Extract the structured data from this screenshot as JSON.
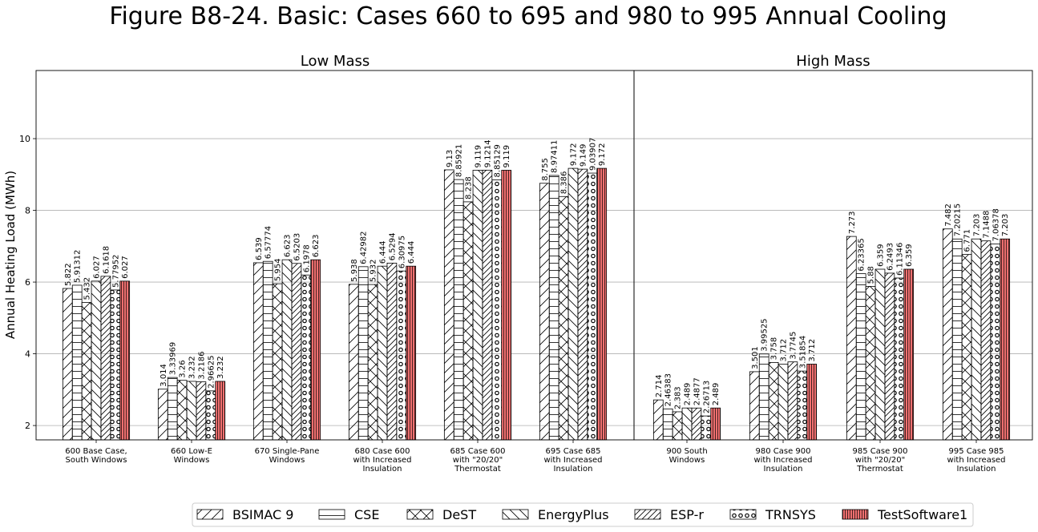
{
  "chart_data": {
    "type": "bar",
    "title": "Figure B8-24. Basic: Cases 660 to 695 and 980 to 995 Annual Cooling",
    "ylabel": "Annual Heating Load (MWh)",
    "ylim": [
      1.6,
      11.9
    ],
    "yticks": [
      2,
      4,
      6,
      8,
      10
    ],
    "grid": true,
    "legend_position": "bottom",
    "series": [
      {
        "name": "BSIMAC 9",
        "pattern": "diag-up"
      },
      {
        "name": "CSE",
        "pattern": "horizontal"
      },
      {
        "name": "DeST",
        "pattern": "cross"
      },
      {
        "name": "EnergyPlus",
        "pattern": "diag-down"
      },
      {
        "name": "ESP-r",
        "pattern": "diag-up-dense"
      },
      {
        "name": "TRNSYS",
        "pattern": "circles"
      },
      {
        "name": "TestSoftware1",
        "pattern": "vertical",
        "color": "#f07070"
      }
    ],
    "panels": [
      {
        "title": "Low Mass",
        "categories": [
          {
            "label": [
              "600 Base Case,",
              "South Windows"
            ],
            "values": [
              5.822,
              5.91312,
              5.432,
              6.027,
              6.1618,
              5.77952,
              6.027
            ],
            "labels": [
              "5.822",
              "5.91312",
              "5.432",
              "6.027",
              "6.1618",
              "5.77952",
              "6.027"
            ]
          },
          {
            "label": [
              "660 Low-E",
              "Windows"
            ],
            "values": [
              3.014,
              3.33969,
              3.26,
              3.232,
              3.2186,
              2.96625,
              3.232
            ],
            "labels": [
              "3.014",
              "3.33969",
              "3.26",
              "3.232",
              "3.2186",
              "2.96625",
              "3.232"
            ]
          },
          {
            "label": [
              "670 Single-Pane",
              "Windows"
            ],
            "values": [
              6.539,
              6.57774,
              5.954,
              6.623,
              6.5203,
              6.1978,
              6.623
            ],
            "labels": [
              "6.539",
              "6.57774",
              "5.954",
              "6.623",
              "6.5203",
              "6.1978",
              "6.623"
            ]
          },
          {
            "label": [
              "680 Case 600",
              "with Increased",
              "Insulation"
            ],
            "values": [
              5.938,
              6.42982,
              5.932,
              6.444,
              6.5294,
              6.30975,
              6.444
            ],
            "labels": [
              "5.938",
              "6.42982",
              "5.932",
              "6.444",
              "6.5294",
              "6.30975",
              "6.444"
            ]
          },
          {
            "label": [
              "685 Case 600",
              "with \"20/20\"",
              "Thermostat"
            ],
            "values": [
              9.13,
              8.85921,
              8.238,
              9.119,
              9.1214,
              8.85129,
              9.119
            ],
            "labels": [
              "9.13",
              "8.85921",
              "8.238",
              "9.119",
              "9.1214",
              "8.85129",
              "9.119"
            ]
          },
          {
            "label": [
              "695 Case 685",
              "with Increased",
              "Insulation"
            ],
            "values": [
              8.755,
              8.97411,
              8.386,
              9.172,
              9.149,
              9.03907,
              9.172
            ],
            "labels": [
              "8.755",
              "8.97411",
              "8.386",
              "9.172",
              "9.149",
              "9.03907",
              "9.172"
            ]
          }
        ]
      },
      {
        "title": "High Mass",
        "categories": [
          {
            "label": [
              "900 South",
              "Windows"
            ],
            "values": [
              2.714,
              2.46383,
              2.383,
              2.489,
              2.4877,
              2.26713,
              2.489
            ],
            "labels": [
              "2.714",
              "2.46383",
              "2.383",
              "2.489",
              "2.4877",
              "2.26713",
              "2.489"
            ]
          },
          {
            "label": [
              "980 Case 900",
              "with Increased",
              "Insulation"
            ],
            "values": [
              3.501,
              3.99525,
              3.758,
              3.712,
              3.7745,
              3.51854,
              3.712
            ],
            "labels": [
              "3.501",
              "3.99525",
              "3.758",
              "3.712",
              "3.7745",
              "3.51854",
              "3.712"
            ]
          },
          {
            "label": [
              "985 Case 900",
              "with \"20/20\"",
              "Thermostat"
            ],
            "values": [
              7.273,
              6.23365,
              5.88,
              6.359,
              6.2493,
              6.11346,
              6.359
            ],
            "labels": [
              "7.273",
              "6.23365",
              "5.88",
              "6.359",
              "6.2493",
              "6.11346",
              "6.359"
            ]
          },
          {
            "label": [
              "995 Case 985",
              "with Increased",
              "Insulation"
            ],
            "values": [
              7.482,
              7.20215,
              6.771,
              7.203,
              7.1488,
              7.06378,
              7.203
            ],
            "labels": [
              "7.482",
              "7.20215",
              "6.771",
              "7.203",
              "7.1488",
              "7.06378",
              "7.203"
            ]
          }
        ]
      }
    ]
  }
}
